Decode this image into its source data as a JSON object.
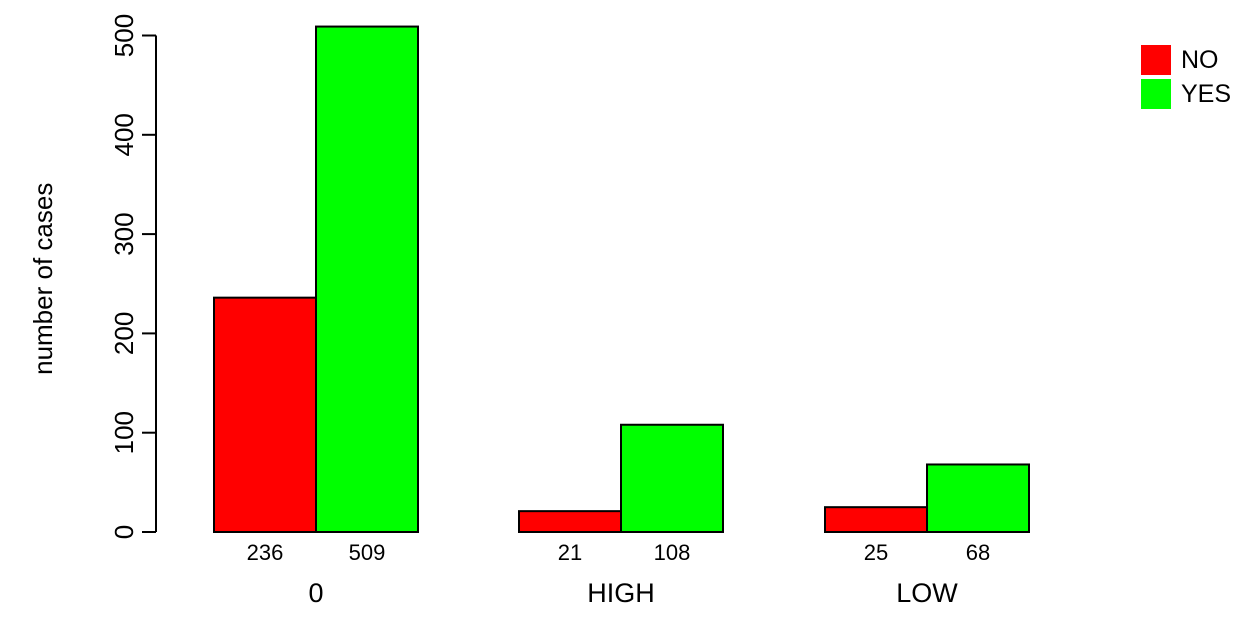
{
  "chart_data": {
    "type": "bar",
    "title": "",
    "xlabel": "",
    "ylabel": "number of cases",
    "ylim": [
      0,
      510
    ],
    "yticks": [
      0,
      100,
      200,
      300,
      400,
      500
    ],
    "categories": [
      "0",
      "HIGH",
      "LOW"
    ],
    "series": [
      {
        "name": "NO",
        "values": [
          236,
          21,
          25
        ],
        "color": "#ff0000"
      },
      {
        "name": "YES",
        "values": [
          509,
          108,
          68
        ],
        "color": "#00ff00"
      }
    ],
    "data_labels": [
      [
        "236",
        "509"
      ],
      [
        "21",
        "108"
      ],
      [
        "25",
        "68"
      ]
    ],
    "legend": {
      "placement": "top-right"
    },
    "grid": false
  }
}
